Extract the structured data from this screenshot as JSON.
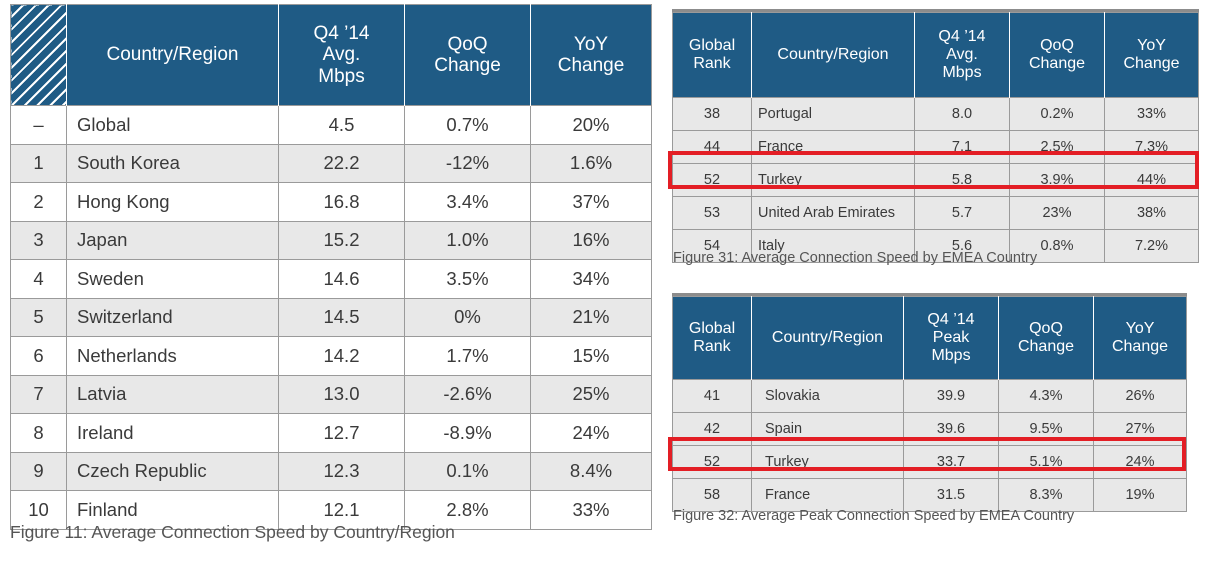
{
  "figure11": {
    "caption": "Figure 11: Average Connection Speed by Country/Region",
    "headers": [
      "",
      "Country/Region",
      "Q4 ’14\nAvg.\nMbps",
      "QoQ\nChange",
      "YoY\nChange"
    ],
    "rows": [
      [
        "–",
        "Global",
        "4.5",
        "0.7%",
        "20%"
      ],
      [
        "1",
        "South Korea",
        "22.2",
        "-12%",
        "1.6%"
      ],
      [
        "2",
        "Hong Kong",
        "16.8",
        "3.4%",
        "37%"
      ],
      [
        "3",
        "Japan",
        "15.2",
        "1.0%",
        "16%"
      ],
      [
        "4",
        "Sweden",
        "14.6",
        "3.5%",
        "34%"
      ],
      [
        "5",
        "Switzerland",
        "14.5",
        "0%",
        "21%"
      ],
      [
        "6",
        "Netherlands",
        "14.2",
        "1.7%",
        "15%"
      ],
      [
        "7",
        "Latvia",
        "13.0",
        "-2.6%",
        "25%"
      ],
      [
        "8",
        "Ireland",
        "12.7",
        "-8.9%",
        "24%"
      ],
      [
        "9",
        "Czech Republic",
        "12.3",
        "0.1%",
        "8.4%"
      ],
      [
        "10",
        "Finland",
        "12.1",
        "2.8%",
        "33%"
      ]
    ]
  },
  "figure31": {
    "caption": "Figure 31: Average Connection Speed by EMEA Country",
    "headers": [
      "Global\nRank",
      "Country/Region",
      "Q4 ’14\nAvg.\nMbps",
      "QoQ\nChange",
      "YoY\nChange"
    ],
    "rows": [
      [
        "38",
        "Portugal",
        "8.0",
        "0.2%",
        "33%"
      ],
      [
        "44",
        "France",
        "7.1",
        "2.5%",
        "7.3%"
      ],
      [
        "52",
        "Turkey",
        "5.8",
        "3.9%",
        "44%"
      ],
      [
        "53",
        "United Arab Emirates",
        "5.7",
        "23%",
        "38%"
      ],
      [
        "54",
        "Italy",
        "5.6",
        "0.8%",
        "7.2%"
      ]
    ],
    "highlighted_row": "Turkey"
  },
  "figure32": {
    "caption": "Figure 32: Average Peak Connection Speed by EMEA Country",
    "headers": [
      "Global\nRank",
      "Country/Region",
      "Q4 ’14\nPeak\nMbps",
      "QoQ\nChange",
      "YoY\nChange"
    ],
    "rows": [
      [
        "41",
        "Slovakia",
        "39.9",
        "4.3%",
        "26%"
      ],
      [
        "42",
        "Spain",
        "39.6",
        "9.5%",
        "27%"
      ],
      [
        "52",
        "Turkey",
        "33.7",
        "5.1%",
        "24%"
      ],
      [
        "58",
        "France",
        "31.5",
        "8.3%",
        "19%"
      ]
    ],
    "highlighted_row": "Turkey"
  },
  "colors": {
    "header_bg": "#1f5b85",
    "header_text": "#ffffff",
    "row_shade": "#e8e8e8",
    "highlight": "#e31e25"
  }
}
